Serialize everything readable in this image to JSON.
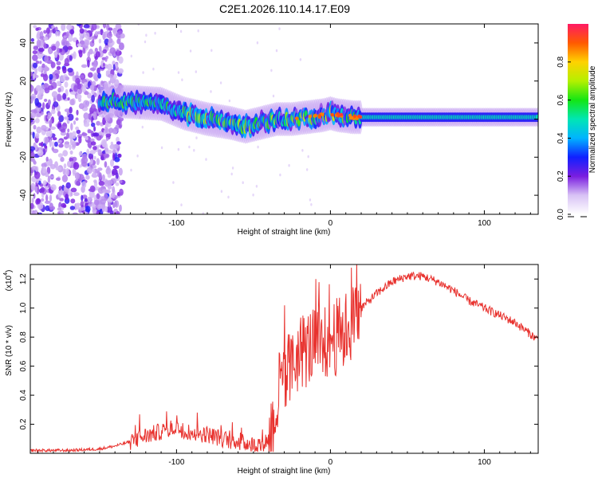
{
  "title": "C2E1.2026.110.14.17.E09",
  "colors": {
    "snr_line": "#e8322e",
    "background": "#ffffff",
    "frame": "#000000"
  },
  "chart_data": [
    {
      "type": "heatmap",
      "name": "spectrogram",
      "xlabel": "Height of straight line (km)",
      "ylabel": "Frequency (Hz)",
      "xlim": [
        -195,
        135
      ],
      "ylim": [
        -50,
        50
      ],
      "x_ticks": [
        -100,
        0,
        100
      ],
      "y_ticks": [
        -40,
        -20,
        0,
        20,
        40
      ],
      "tick_labels_x": [
        "-100",
        "0",
        "100"
      ],
      "tick_labels_y": [
        "-40",
        "-20",
        "0",
        "20",
        "40"
      ],
      "ridge": {
        "description": "dominant frequency vs height",
        "x": [
          -150,
          -130,
          -110,
          -95,
          -80,
          -65,
          -55,
          -45,
          -35,
          -25,
          -15,
          -5,
          0,
          5,
          15,
          40,
          80,
          135
        ],
        "y": [
          10,
          9,
          8,
          3,
          0,
          -2,
          -4,
          -2,
          0,
          0,
          1,
          2,
          3,
          2,
          1,
          1,
          1,
          1
        ]
      },
      "noise_region_x": [
        -195,
        -135
      ],
      "colorbar": {
        "label": "Normalized spectral amplitude",
        "range": [
          0.0,
          1.0
        ],
        "ticks": [
          0.0,
          0.2,
          0.4,
          0.6,
          0.8
        ],
        "tick_labels": [
          "0.0",
          "0.2",
          "0.4",
          "0.6",
          "0.8"
        ]
      }
    },
    {
      "type": "line",
      "name": "snr",
      "xlabel": "Height of straight line (km)",
      "ylabel": "SNR (10 * v/v)",
      "scale_label": "(x10",
      "scale_exp": "4",
      "xlim": [
        -195,
        135
      ],
      "ylim": [
        0.0,
        1.3
      ],
      "x_ticks": [
        -100,
        0,
        100
      ],
      "y_ticks": [
        0.2,
        0.4,
        0.6,
        0.8,
        1.0,
        1.2
      ],
      "tick_labels_x": [
        "-100",
        "0",
        "100"
      ],
      "tick_labels_y": [
        "0.2",
        "0.4",
        "0.6",
        "0.8",
        "1.0",
        "1.2"
      ],
      "series": [
        {
          "name": "SNR",
          "x": [
            -195,
            -170,
            -150,
            -140,
            -130,
            -120,
            -110,
            -100,
            -90,
            -80,
            -70,
            -60,
            -50,
            -45,
            -40,
            -35,
            -30,
            -25,
            -20,
            -15,
            -10,
            -5,
            0,
            5,
            10,
            15,
            20,
            30,
            40,
            50,
            60,
            70,
            80,
            90,
            100,
            110,
            120,
            130,
            135
          ],
          "y": [
            0.02,
            0.02,
            0.03,
            0.05,
            0.08,
            0.12,
            0.15,
            0.18,
            0.14,
            0.13,
            0.1,
            0.08,
            0.06,
            0.06,
            0.1,
            0.3,
            0.5,
            0.6,
            0.7,
            0.72,
            0.75,
            0.72,
            0.8,
            0.8,
            0.85,
            0.9,
            1.0,
            1.1,
            1.18,
            1.22,
            1.22,
            1.18,
            1.12,
            1.05,
            1.0,
            0.95,
            0.9,
            0.82,
            0.78
          ]
        }
      ]
    }
  ]
}
